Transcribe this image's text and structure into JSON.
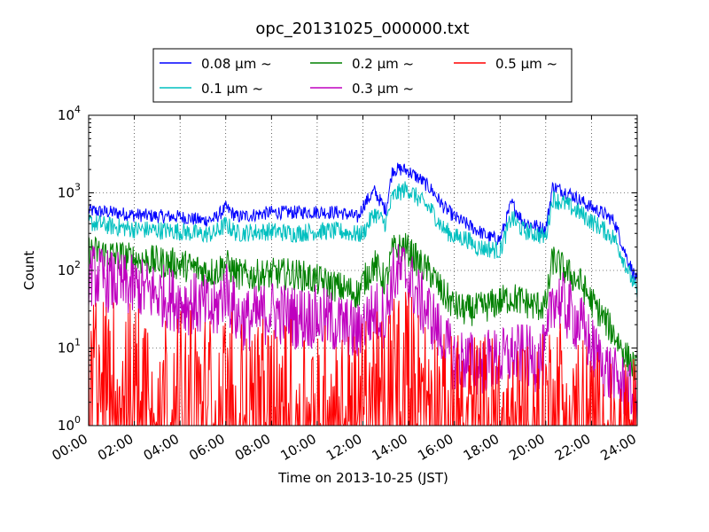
{
  "chart_data": {
    "type": "line",
    "title": "opc_20131025_000000.txt",
    "xlabel": "Time on 2013-10-25 (JST)",
    "ylabel": "Count",
    "yscale": "log",
    "ylim": [
      1,
      10000
    ],
    "xlim": [
      0,
      24
    ],
    "x_tick_labels": [
      "00:00",
      "02:00",
      "04:00",
      "06:00",
      "08:00",
      "10:00",
      "12:00",
      "14:00",
      "16:00",
      "18:00",
      "20:00",
      "22:00",
      "24:00"
    ],
    "y_tick_labels": [
      {
        "base": "10",
        "exp": "0"
      },
      {
        "base": "10",
        "exp": "1"
      },
      {
        "base": "10",
        "exp": "2"
      },
      {
        "base": "10",
        "exp": "3"
      },
      {
        "base": "10",
        "exp": "4"
      }
    ],
    "grid": true,
    "legend_position": "top-center",
    "x_hours": [
      0,
      1,
      2,
      3,
      4,
      5,
      5.5,
      6,
      6.5,
      7,
      8,
      9,
      10,
      11,
      11.8,
      12,
      12.5,
      13,
      13.3,
      13.8,
      14,
      14.5,
      15,
      15.5,
      16,
      16.5,
      17,
      17.5,
      18,
      18.5,
      19,
      19.5,
      20,
      20.3,
      21,
      21.5,
      22,
      22.5,
      23,
      23.5,
      24
    ],
    "series": [
      {
        "name": "0.08 μm ~",
        "color": "#0000ff",
        "values": [
          590,
          560,
          520,
          500,
          490,
          440,
          460,
          640,
          490,
          510,
          560,
          560,
          570,
          560,
          480,
          680,
          1050,
          600,
          2000,
          2000,
          1900,
          1500,
          1100,
          680,
          490,
          400,
          330,
          270,
          250,
          740,
          430,
          380,
          340,
          1200,
          1000,
          800,
          650,
          550,
          430,
          160,
          70
        ]
      },
      {
        "name": "0.1 μm ~",
        "color": "#00bfbf",
        "values": [
          420,
          370,
          340,
          330,
          320,
          290,
          300,
          390,
          300,
          310,
          320,
          300,
          320,
          320,
          290,
          300,
          550,
          400,
          900,
          1100,
          1100,
          800,
          600,
          350,
          270,
          260,
          200,
          190,
          180,
          480,
          330,
          300,
          270,
          850,
          680,
          550,
          430,
          340,
          260,
          120,
          50
        ]
      },
      {
        "name": "0.2 μm ~",
        "color": "#008000",
        "values": [
          180,
          160,
          140,
          130,
          120,
          100,
          95,
          120,
          90,
          85,
          90,
          90,
          75,
          60,
          50,
          70,
          120,
          70,
          180,
          200,
          180,
          120,
          90,
          50,
          35,
          30,
          32,
          35,
          40,
          45,
          40,
          35,
          35,
          140,
          90,
          70,
          40,
          25,
          15,
          8,
          5
        ]
      },
      {
        "name": "0.3 μm ~",
        "color": "#bf00bf",
        "values": [
          90,
          70,
          60,
          50,
          40,
          35,
          28,
          60,
          25,
          23,
          30,
          25,
          25,
          20,
          15,
          20,
          30,
          25,
          80,
          100,
          80,
          40,
          25,
          12,
          7,
          7,
          6,
          7,
          7,
          8,
          8,
          7,
          8,
          50,
          30,
          20,
          10,
          6,
          4,
          3,
          2
        ]
      },
      {
        "name": "0.5 μm ~",
        "color": "#ff0000",
        "values": [
          8,
          6,
          5,
          5,
          4,
          4,
          3,
          5,
          3,
          3,
          3,
          3,
          3,
          2.5,
          2,
          3,
          4,
          3,
          8,
          10,
          8,
          4,
          3,
          2,
          2,
          2,
          2,
          2,
          2,
          2,
          2,
          2,
          2,
          4,
          3,
          2,
          1.5,
          1,
          1,
          1,
          1
        ]
      }
    ]
  }
}
